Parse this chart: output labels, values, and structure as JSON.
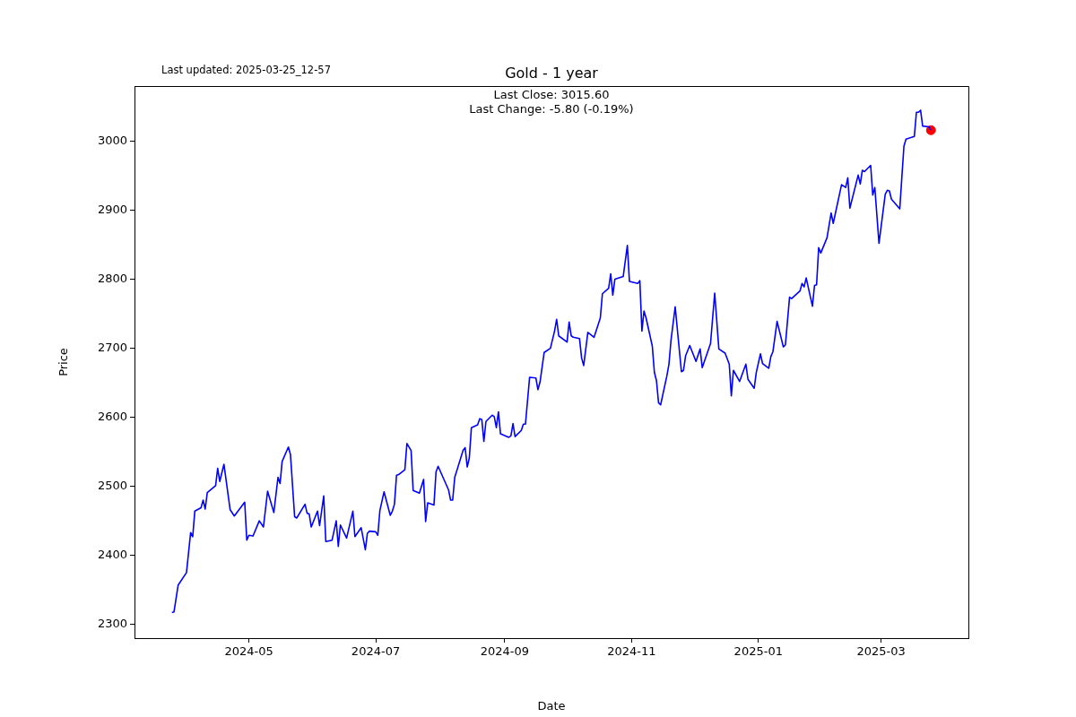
{
  "chart_data": {
    "type": "line",
    "title": "Gold - 1 year",
    "xlabel": "Date",
    "ylabel": "Price",
    "annotations": [
      "Last updated: 2025-03-25_12-57",
      "Last Close: 3015.60",
      "Last Change: -5.80 (-0.19%)"
    ],
    "xlim": [
      "2024-03-07",
      "2025-04-12"
    ],
    "xticks": [
      {
        "value": "2024-05-01",
        "label": "2024-05"
      },
      {
        "value": "2024-07-01",
        "label": "2024-07"
      },
      {
        "value": "2024-09-01",
        "label": "2024-09"
      },
      {
        "value": "2024-11-01",
        "label": "2024-11"
      },
      {
        "value": "2025-01-01",
        "label": "2025-01"
      },
      {
        "value": "2025-03-01",
        "label": "2025-03"
      }
    ],
    "ylim": [
      2280,
      3080
    ],
    "yticks": [
      2300,
      2400,
      2500,
      2600,
      2700,
      2800,
      2900,
      3000
    ],
    "series": [
      {
        "color": "#0000ff",
        "marker": "none",
        "x": [
          "2024-03-25",
          "2024-03-26",
          "2024-03-28",
          "2024-04-01",
          "2024-04-03",
          "2024-04-04",
          "2024-04-05",
          "2024-04-08",
          "2024-04-09",
          "2024-04-10",
          "2024-04-11",
          "2024-04-15",
          "2024-04-16",
          "2024-04-17",
          "2024-04-19",
          "2024-04-22",
          "2024-04-24",
          "2024-04-29",
          "2024-04-30",
          "2024-05-01",
          "2024-05-03",
          "2024-05-06",
          "2024-05-08",
          "2024-05-10",
          "2024-05-13",
          "2024-05-15",
          "2024-05-16",
          "2024-05-17",
          "2024-05-20",
          "2024-05-21",
          "2024-05-23",
          "2024-05-24",
          "2024-05-28",
          "2024-05-29",
          "2024-05-30",
          "2024-05-31",
          "2024-06-03",
          "2024-06-04",
          "2024-06-06",
          "2024-06-07",
          "2024-06-10",
          "2024-06-12",
          "2024-06-13",
          "2024-06-14",
          "2024-06-17",
          "2024-06-20",
          "2024-06-21",
          "2024-06-24",
          "2024-06-26",
          "2024-06-27",
          "2024-06-28",
          "2024-07-01",
          "2024-07-02",
          "2024-07-03",
          "2024-07-05",
          "2024-07-08",
          "2024-07-09",
          "2024-07-10",
          "2024-07-11",
          "2024-07-12",
          "2024-07-15",
          "2024-07-16",
          "2024-07-18",
          "2024-07-19",
          "2024-07-22",
          "2024-07-24",
          "2024-07-25",
          "2024-07-26",
          "2024-07-29",
          "2024-07-30",
          "2024-07-31",
          "2024-08-05",
          "2024-08-06",
          "2024-08-07",
          "2024-08-08",
          "2024-08-12",
          "2024-08-13",
          "2024-08-14",
          "2024-08-15",
          "2024-08-16",
          "2024-08-19",
          "2024-08-20",
          "2024-08-21",
          "2024-08-22",
          "2024-08-23",
          "2024-08-26",
          "2024-08-27",
          "2024-08-28",
          "2024-08-29",
          "2024-08-30",
          "2024-09-03",
          "2024-09-04",
          "2024-09-05",
          "2024-09-06",
          "2024-09-09",
          "2024-09-10",
          "2024-09-11",
          "2024-09-13",
          "2024-09-16",
          "2024-09-17",
          "2024-09-18",
          "2024-09-20",
          "2024-09-23",
          "2024-09-25",
          "2024-09-26",
          "2024-09-27",
          "2024-10-01",
          "2024-10-02",
          "2024-10-03",
          "2024-10-04",
          "2024-10-07",
          "2024-10-08",
          "2024-10-09",
          "2024-10-11",
          "2024-10-14",
          "2024-10-17",
          "2024-10-18",
          "2024-10-21",
          "2024-10-22",
          "2024-10-23",
          "2024-10-24",
          "2024-10-28",
          "2024-10-30",
          "2024-10-31",
          "2024-11-04",
          "2024-11-05",
          "2024-11-06",
          "2024-11-07",
          "2024-11-08",
          "2024-11-11",
          "2024-11-12",
          "2024-11-13",
          "2024-11-14",
          "2024-11-15",
          "2024-11-18",
          "2024-11-19",
          "2024-11-20",
          "2024-11-22",
          "2024-11-25",
          "2024-11-26",
          "2024-11-27",
          "2024-11-29",
          "2024-12-02",
          "2024-12-04",
          "2024-12-05",
          "2024-12-09",
          "2024-12-11",
          "2024-12-13",
          "2024-12-16",
          "2024-12-18",
          "2024-12-19",
          "2024-12-20",
          "2024-12-23",
          "2024-12-26",
          "2024-12-27",
          "2024-12-30",
          "2024-12-31",
          "2025-01-02",
          "2025-01-03",
          "2025-01-06",
          "2025-01-07",
          "2025-01-08",
          "2025-01-10",
          "2025-01-13",
          "2025-01-14",
          "2025-01-16",
          "2025-01-17",
          "2025-01-21",
          "2025-01-22",
          "2025-01-23",
          "2025-01-24",
          "2025-01-27",
          "2025-01-28",
          "2025-01-29",
          "2025-01-30",
          "2025-01-31",
          "2025-02-03",
          "2025-02-05",
          "2025-02-06",
          "2025-02-10",
          "2025-02-12",
          "2025-02-13",
          "2025-02-14",
          "2025-02-18",
          "2025-02-19",
          "2025-02-20",
          "2025-02-21",
          "2025-02-24",
          "2025-02-25",
          "2025-02-26",
          "2025-02-28",
          "2025-03-03",
          "2025-03-04",
          "2025-03-05",
          "2025-03-06",
          "2025-03-10",
          "2025-03-11",
          "2025-03-12",
          "2025-03-13",
          "2025-03-17",
          "2025-03-18",
          "2025-03-19",
          "2025-03-20",
          "2025-03-21",
          "2025-03-24",
          "2025-03-25"
        ],
        "values": [
          2317,
          2318,
          2357,
          2375,
          2433,
          2427,
          2464,
          2469,
          2480,
          2467,
          2491,
          2501,
          2526,
          2507,
          2532,
          2466,
          2457,
          2477,
          2422,
          2429,
          2428,
          2450,
          2441,
          2493,
          2462,
          2513,
          2504,
          2536,
          2557,
          2546,
          2456,
          2454,
          2474,
          2461,
          2460,
          2441,
          2464,
          2443,
          2486,
          2420,
          2422,
          2450,
          2413,
          2444,
          2425,
          2464,
          2427,
          2440,
          2408,
          2432,
          2435,
          2434,
          2429,
          2465,
          2492,
          2458,
          2464,
          2474,
          2516,
          2517,
          2524,
          2562,
          2552,
          2494,
          2490,
          2510,
          2449,
          2476,
          2473,
          2521,
          2529,
          2495,
          2480,
          2480,
          2513,
          2552,
          2556,
          2528,
          2541,
          2585,
          2589,
          2598,
          2597,
          2565,
          2594,
          2603,
          2601,
          2585,
          2608,
          2576,
          2571,
          2573,
          2591,
          2572,
          2581,
          2590,
          2590,
          2658,
          2657,
          2640,
          2651,
          2694,
          2700,
          2725,
          2742,
          2718,
          2709,
          2738,
          2718,
          2716,
          2714,
          2686,
          2675,
          2723,
          2716,
          2744,
          2779,
          2787,
          2808,
          2777,
          2800,
          2804,
          2849,
          2797,
          2794,
          2798,
          2725,
          2754,
          2744,
          2703,
          2665,
          2653,
          2621,
          2618,
          2660,
          2677,
          2712,
          2760,
          2666,
          2668,
          2689,
          2704,
          2681,
          2699,
          2672,
          2707,
          2780,
          2699,
          2693,
          2677,
          2631,
          2668,
          2652,
          2677,
          2655,
          2642,
          2665,
          2692,
          2678,
          2671,
          2688,
          2695,
          2739,
          2702,
          2705,
          2774,
          2772,
          2783,
          2794,
          2789,
          2802,
          2761,
          2791,
          2792,
          2846,
          2838,
          2860,
          2896,
          2881,
          2937,
          2933,
          2947,
          2903,
          2951,
          2938,
          2958,
          2956,
          2965,
          2922,
          2933,
          2852,
          2923,
          2929,
          2928,
          2916,
          2902,
          2948,
          2993,
          3003,
          3007,
          3042,
          3042,
          3045,
          3022,
          3021,
          3016
        ]
      },
      {
        "type": "scatter",
        "color": "#ff0000",
        "marker": "circle",
        "x": [
          "2025-03-25"
        ],
        "values": [
          3016
        ]
      }
    ]
  }
}
